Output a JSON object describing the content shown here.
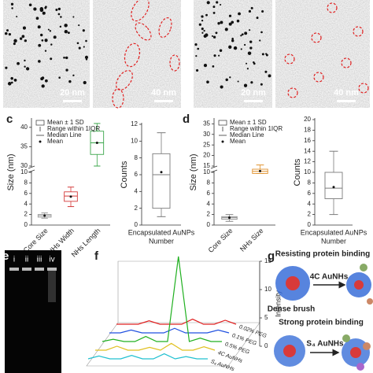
{
  "images": {
    "left_pair": {
      "scale_bars": [
        "20 nm",
        "40 nm"
      ]
    },
    "right_pair": {
      "scale_bars": [
        "20 nm",
        "40 nm"
      ]
    }
  },
  "gel": {
    "panel_label": "e",
    "lanes": [
      "i",
      "ii",
      "iii",
      "iv"
    ]
  },
  "diagram": {
    "panel_label": "g",
    "top_title": "Resisting protein binding",
    "top_arrow": "4C AuNHs",
    "top_caption": "Dense brush",
    "bottom_title": "Strong protein binding",
    "bottom_arrow": "S₄ AuNHs"
  },
  "chart_data": [
    {
      "type": "box",
      "panel_label": "c",
      "ylabel": "Size (nm)",
      "categories": [
        "Core Size",
        "NHs Width",
        "NHs Length"
      ],
      "colors": [
        "#9a9a9a",
        "#d43a3a",
        "#3aa64a"
      ],
      "boxes": [
        {
          "min": 1.3,
          "q1": 1.5,
          "median": 1.8,
          "q3": 2.0,
          "max": 2.3,
          "mean": 1.8
        },
        {
          "min": 3.5,
          "q1": 4.5,
          "median": 5.5,
          "q3": 6.3,
          "max": 7.2,
          "mean": 5.4
        },
        {
          "min": 30,
          "q1": 33,
          "median": 36,
          "q3": 39,
          "max": 41,
          "mean": 36
        }
      ],
      "ylim": [
        0,
        42
      ],
      "ybreak": [
        10,
        30
      ],
      "yticks": [
        0,
        2,
        4,
        6,
        8,
        10,
        30,
        35,
        40
      ],
      "legend": [
        "Mean ± 1 SD",
        "Range within 1IQR",
        "Median Line",
        "Mean"
      ]
    },
    {
      "type": "box",
      "ylabel": "Counts",
      "categories": [
        "Encapsulated AuNPs"
      ],
      "xlabel": "Number",
      "colors": [
        "#7a7a7a"
      ],
      "boxes": [
        {
          "min": 1,
          "q1": 2,
          "median": 6,
          "q3": 8.5,
          "max": 11,
          "mean": 6.3
        }
      ],
      "ylim": [
        0,
        12
      ],
      "yticks": [
        0,
        2,
        4,
        6,
        8,
        10,
        12
      ]
    },
    {
      "type": "box",
      "panel_label": "d",
      "ylabel": "Size (nm)",
      "categories": [
        "Core Size",
        "NHs Size"
      ],
      "colors": [
        "#8a8a8a",
        "#e0902a"
      ],
      "boxes": [
        {
          "min": 0.7,
          "q1": 1.1,
          "median": 1.4,
          "q3": 1.6,
          "max": 2.0,
          "mean": 1.4
        },
        {
          "min": 9.8,
          "q1": 11.5,
          "median": 12.5,
          "q3": 13.5,
          "max": 15.5,
          "mean": 12.6
        }
      ],
      "ylim": [
        0,
        37
      ],
      "ybreak": [
        10,
        15
      ],
      "yticks": [
        0,
        2,
        4,
        6,
        8,
        10,
        15,
        20,
        25,
        30,
        35
      ],
      "legend": [
        "Mean ± 1 SD",
        "Range within 1IQR",
        "Median Line",
        "Mean"
      ]
    },
    {
      "type": "box",
      "ylabel": "Counts",
      "categories": [
        "Encapsulated AuNPs"
      ],
      "xlabel": "Number",
      "colors": [
        "#7a7a7a"
      ],
      "boxes": [
        {
          "min": 2,
          "q1": 5,
          "median": 7,
          "q3": 10,
          "max": 14,
          "mean": 7.2
        }
      ],
      "ylim": [
        0,
        20
      ],
      "yticks": [
        0,
        2,
        4,
        6,
        8,
        10,
        12,
        14,
        16,
        18,
        20
      ]
    },
    {
      "type": "line3d",
      "panel_label": "f",
      "ylabel": "Intensity",
      "ylim": [
        0,
        15
      ],
      "yticks": [
        0,
        5,
        10,
        15
      ],
      "series": [
        {
          "name": "0.02% PEG",
          "color": "#e02020",
          "values": [
            0,
            0,
            0,
            0.6,
            0,
            0,
            0,
            0.9,
            0,
            0,
            0.7,
            0
          ]
        },
        {
          "name": "0.1% PEG",
          "color": "#2050e0",
          "values": [
            0,
            0,
            0.5,
            0,
            0,
            0,
            0.8,
            0,
            0,
            0,
            0.5,
            0
          ]
        },
        {
          "name": "0.5% PEG",
          "color": "#20b020",
          "values": [
            0,
            0.4,
            0,
            0,
            0.9,
            0,
            0,
            15,
            0,
            0.6,
            0,
            0
          ]
        },
        {
          "name": "4C AuNHs",
          "color": "#e0c020",
          "values": [
            0,
            0,
            0.7,
            0,
            0,
            0.5,
            0,
            1.2,
            0,
            0,
            0.6,
            0
          ]
        },
        {
          "name": "S₄ AuNHs",
          "color": "#20c0d0",
          "values": [
            0,
            0.5,
            0,
            0,
            0.6,
            0,
            0,
            0.9,
            0,
            0.4,
            0,
            0
          ]
        }
      ]
    }
  ]
}
